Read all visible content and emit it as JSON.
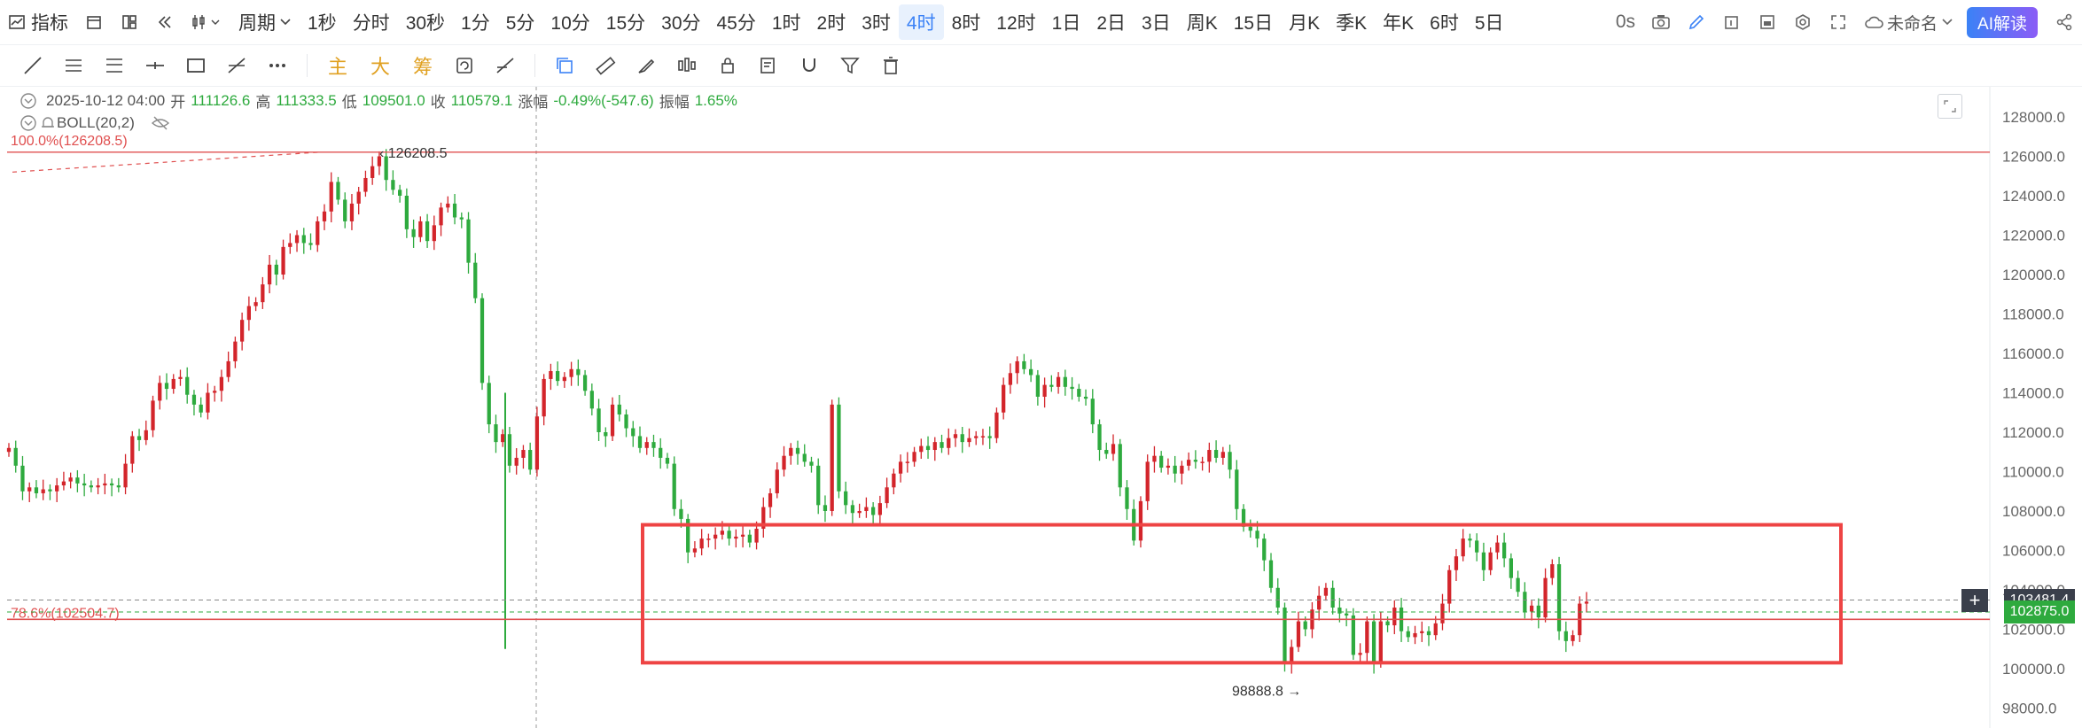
{
  "toolbar": {
    "indicator_label": "指标",
    "period_label": "周期",
    "periods": [
      "1秒",
      "分时",
      "30秒",
      "1分",
      "5分",
      "10分",
      "15分",
      "30分",
      "45分",
      "1时",
      "2时",
      "3时",
      "4时",
      "8时",
      "12时",
      "1日",
      "2日",
      "3日",
      "周K",
      "15日",
      "月K",
      "季K",
      "年K",
      "6时",
      "5日"
    ],
    "active_period": "4时",
    "countdown": "0s",
    "layout_name": "未命名",
    "ai_label": "AI解读"
  },
  "drawing_toolbar": {
    "labels": [
      "主",
      "大",
      "筹"
    ]
  },
  "info_bar": {
    "datetime": "2025-10-12 04:00",
    "open_label": "开",
    "open": "111126.6",
    "high_label": "高",
    "high": "111333.5",
    "low_label": "低",
    "low": "109501.0",
    "close_label": "收",
    "close": "110579.1",
    "change_label": "涨幅",
    "change": "-0.49%(-547.6)",
    "amp_label": "振幅",
    "amp": "1.65%"
  },
  "indicator": {
    "label": "BOLL(20,2)"
  },
  "chart_data": {
    "type": "candlestick",
    "y_axis_ticks": [
      128000,
      126000,
      124000,
      122000,
      120000,
      118000,
      116000,
      114000,
      112000,
      110000,
      108000,
      106000,
      104000,
      102000,
      100000,
      98000
    ],
    "y_axis_tick_labels": [
      "128000.0",
      "126000.0",
      "124000.0",
      "122000.0",
      "120000.0",
      "118000.0",
      "116000.0",
      "114000.0",
      "112000.0",
      "110000.0",
      "108000.0",
      "106000.0",
      "104000.0",
      "102000.0",
      "100000.0",
      "98000.0"
    ],
    "ylim": [
      97000,
      129000
    ],
    "fib_levels": [
      {
        "label": "100.0%(126208.5)",
        "value": 126208.5
      },
      {
        "label": "78.6%(102504.7)",
        "value": 102504.7
      }
    ],
    "high_marker": {
      "label": "126208.5",
      "value": 126208.5
    },
    "low_marker": {
      "label": "98888.8",
      "value": 98888.8
    },
    "price_tags": [
      {
        "label": "103481.4",
        "value": 103481.4,
        "color": "#3a3f4b"
      },
      {
        "label": "102875.0",
        "value": 102875.0,
        "color": "#2eaa3e"
      }
    ],
    "highlight_range": {
      "top": 107300,
      "bottom": 100300
    },
    "colors": {
      "up": "#d3252b",
      "down": "#2eaa3e",
      "box": "#ee4444",
      "fib": "#e05050"
    },
    "closes": [
      111200,
      110300,
      109000,
      109200,
      108900,
      109100,
      109000,
      109300,
      109500,
      109700,
      109400,
      109300,
      109200,
      109300,
      109400,
      109300,
      109200,
      110400,
      111800,
      111600,
      112100,
      113600,
      114500,
      114200,
      114700,
      114800,
      113900,
      113400,
      113000,
      114000,
      114100,
      114800,
      115600,
      116600,
      117700,
      118400,
      118600,
      119500,
      120500,
      120000,
      121400,
      121600,
      122000,
      121600,
      121500,
      122700,
      123200,
      124700,
      123800,
      122700,
      123600,
      124200,
      124900,
      125500,
      126000,
      124800,
      124300,
      124000,
      122300,
      121900,
      122700,
      121700,
      122500,
      123400,
      123600,
      122900,
      122800,
      120600,
      118800,
      114500,
      112400,
      111500,
      111900,
      110300,
      110700,
      111100,
      110100,
      112800,
      114700,
      115100,
      114600,
      114800,
      115200,
      114900,
      114100,
      113200,
      112000,
      111800,
      113400,
      112900,
      112200,
      111800,
      111200,
      111500,
      111200,
      110700,
      110400,
      108100,
      107600,
      105900,
      106100,
      106600,
      106600,
      106800,
      107000,
      106600,
      106700,
      106800,
      106400,
      107100,
      108200,
      108900,
      110100,
      110800,
      111200,
      110900,
      110500,
      110300,
      108300,
      108000,
      113400,
      109000,
      108300,
      107900,
      108000,
      108200,
      107800,
      108400,
      109200,
      109900,
      110500,
      110500,
      111000,
      111300,
      111100,
      111500,
      111200,
      111700,
      111900,
      111500,
      111700,
      111800,
      111800,
      111700,
      113000,
      114400,
      115000,
      115600,
      115200,
      114900,
      113800,
      114400,
      114300,
      114800,
      114300,
      114200,
      113800,
      113700,
      112400,
      111100,
      110900,
      111400,
      109200,
      108100,
      106500,
      108500,
      110500,
      110800,
      110200,
      110300,
      109900,
      110300,
      110600,
      110500,
      110500,
      111100,
      110700,
      111000,
      110100,
      108100,
      107200,
      107000,
      106600,
      105500,
      104100,
      103100,
      100300,
      101100,
      102400,
      102000,
      103000,
      103700,
      104100,
      103100,
      102800,
      102700,
      100700,
      100800,
      102400,
      100300,
      102400,
      102200,
      103100,
      101900,
      101600,
      101800,
      101900,
      101700,
      102300,
      103300,
      105000,
      105700,
      106600,
      106500,
      105900,
      105000,
      105900,
      106400,
      105600,
      104600,
      103900,
      102900,
      103200,
      102600,
      104600,
      105300,
      101900,
      101400,
      101700,
      103300,
      103400
    ]
  }
}
